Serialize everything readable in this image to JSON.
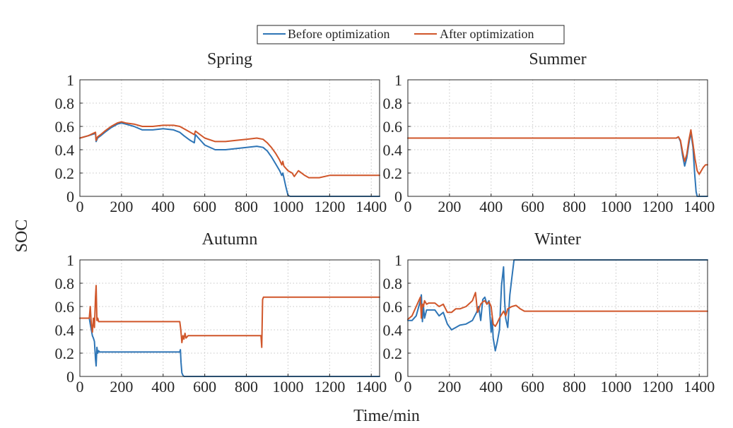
{
  "legend": {
    "entries": [
      {
        "label": "Before optimization",
        "color": "#2e75b6"
      },
      {
        "label": "After optimization",
        "color": "#d0562a"
      }
    ]
  },
  "figure": {
    "ylabel": "SOC",
    "xlabel": "Time/min"
  },
  "chart_data": [
    {
      "type": "line",
      "title": "Spring",
      "xlim": [
        0,
        1440
      ],
      "ylim": [
        0,
        1
      ],
      "xticks": [
        0,
        200,
        400,
        600,
        800,
        1000,
        1200,
        1400
      ],
      "yticks": [
        0,
        0.2,
        0.4,
        0.6,
        0.8,
        1
      ],
      "ytick_labels": [
        "0",
        "0.2",
        "0.4",
        "0.6",
        "0.8",
        "1"
      ],
      "grid": true,
      "series": [
        {
          "name": "Before optimization",
          "color": "#2e75b6",
          "x": [
            0,
            40,
            75,
            78,
            85,
            100,
            120,
            150,
            180,
            200,
            220,
            260,
            300,
            350,
            400,
            450,
            480,
            500,
            530,
            550,
            555,
            570,
            600,
            650,
            700,
            750,
            800,
            850,
            880,
            900,
            920,
            940,
            960,
            970,
            975,
            980,
            990,
            1000,
            1010,
            1100,
            1200,
            1300,
            1440
          ],
          "y": [
            0.5,
            0.52,
            0.54,
            0.47,
            0.5,
            0.52,
            0.55,
            0.59,
            0.62,
            0.63,
            0.62,
            0.6,
            0.57,
            0.57,
            0.58,
            0.57,
            0.55,
            0.52,
            0.48,
            0.46,
            0.53,
            0.5,
            0.44,
            0.4,
            0.4,
            0.41,
            0.42,
            0.43,
            0.42,
            0.39,
            0.34,
            0.28,
            0.22,
            0.18,
            0.2,
            0.16,
            0.08,
            0.01,
            0,
            0,
            0,
            0,
            0
          ]
        },
        {
          "name": "After optimization",
          "color": "#d0562a",
          "x": [
            0,
            40,
            75,
            78,
            85,
            100,
            120,
            150,
            180,
            200,
            220,
            260,
            300,
            350,
            400,
            450,
            480,
            500,
            530,
            550,
            555,
            570,
            600,
            650,
            700,
            750,
            800,
            850,
            880,
            900,
            920,
            940,
            960,
            970,
            975,
            980,
            1000,
            1020,
            1030,
            1050,
            1080,
            1100,
            1150,
            1200,
            1300,
            1440
          ],
          "y": [
            0.5,
            0.52,
            0.55,
            0.48,
            0.51,
            0.53,
            0.56,
            0.6,
            0.63,
            0.64,
            0.63,
            0.62,
            0.6,
            0.6,
            0.61,
            0.61,
            0.6,
            0.58,
            0.55,
            0.53,
            0.56,
            0.54,
            0.5,
            0.47,
            0.47,
            0.48,
            0.49,
            0.5,
            0.49,
            0.46,
            0.42,
            0.37,
            0.31,
            0.27,
            0.3,
            0.26,
            0.22,
            0.2,
            0.17,
            0.22,
            0.18,
            0.16,
            0.16,
            0.18,
            0.18,
            0.18
          ]
        }
      ]
    },
    {
      "type": "line",
      "title": "Summer",
      "xlim": [
        0,
        1440
      ],
      "ylim": [
        0,
        1
      ],
      "xticks": [
        0,
        200,
        400,
        600,
        800,
        1000,
        1200,
        1400
      ],
      "yticks": [
        0,
        0.2,
        0.4,
        0.6,
        0.8,
        1
      ],
      "ytick_labels": [
        "0",
        "0.2",
        "0.4",
        "0.6",
        "0.8",
        "1"
      ],
      "grid": true,
      "series": [
        {
          "name": "Before optimization",
          "color": "#2e75b6",
          "x": [
            0,
            1000,
            1290,
            1300,
            1310,
            1320,
            1330,
            1340,
            1350,
            1360,
            1370,
            1378,
            1385,
            1390,
            1400,
            1440
          ],
          "y": [
            0.5,
            0.5,
            0.5,
            0.51,
            0.47,
            0.35,
            0.26,
            0.33,
            0.45,
            0.55,
            0.42,
            0.2,
            0.04,
            0,
            0,
            0
          ]
        },
        {
          "name": "After optimization",
          "color": "#d0562a",
          "x": [
            0,
            1000,
            1290,
            1300,
            1310,
            1320,
            1330,
            1340,
            1350,
            1360,
            1370,
            1380,
            1390,
            1400,
            1410,
            1420,
            1430,
            1440
          ],
          "y": [
            0.5,
            0.5,
            0.5,
            0.51,
            0.48,
            0.38,
            0.3,
            0.36,
            0.48,
            0.57,
            0.45,
            0.32,
            0.22,
            0.19,
            0.22,
            0.25,
            0.27,
            0.27
          ]
        }
      ]
    },
    {
      "type": "line",
      "title": "Autumn",
      "xlim": [
        0,
        1440
      ],
      "ylim": [
        0,
        1
      ],
      "xticks": [
        0,
        200,
        400,
        600,
        800,
        1000,
        1200,
        1400
      ],
      "yticks": [
        0,
        0.2,
        0.4,
        0.6,
        0.8,
        1
      ],
      "ytick_labels": [
        "0",
        "0.2",
        "0.4",
        "0.6",
        "0.8",
        "1"
      ],
      "grid": true,
      "series": [
        {
          "name": "Before optimization",
          "color": "#2e75b6",
          "x": [
            0,
            45,
            50,
            55,
            60,
            65,
            70,
            75,
            78,
            82,
            86,
            90,
            95,
            100,
            200,
            300,
            400,
            480,
            483,
            486,
            490,
            495,
            500,
            600,
            800,
            1000,
            1200,
            1440
          ],
          "y": [
            0.5,
            0.5,
            0.45,
            0.4,
            0.35,
            0.33,
            0.3,
            0.15,
            0.09,
            0.25,
            0.2,
            0.22,
            0.21,
            0.21,
            0.21,
            0.21,
            0.21,
            0.21,
            0.23,
            0.12,
            0.03,
            0.01,
            0,
            0,
            0,
            0,
            0,
            0
          ]
        },
        {
          "name": "After optimization",
          "color": "#d0562a",
          "x": [
            0,
            45,
            50,
            55,
            60,
            65,
            70,
            75,
            78,
            82,
            86,
            90,
            95,
            100,
            200,
            300,
            400,
            480,
            485,
            490,
            495,
            500,
            505,
            510,
            520,
            600,
            700,
            800,
            860,
            870,
            874,
            878,
            882,
            890,
            900,
            1000,
            1200,
            1440
          ],
          "y": [
            0.5,
            0.5,
            0.6,
            0.45,
            0.38,
            0.5,
            0.42,
            0.68,
            0.78,
            0.48,
            0.5,
            0.47,
            0.47,
            0.47,
            0.47,
            0.47,
            0.47,
            0.47,
            0.4,
            0.29,
            0.35,
            0.32,
            0.37,
            0.33,
            0.35,
            0.35,
            0.35,
            0.35,
            0.35,
            0.35,
            0.25,
            0.66,
            0.68,
            0.68,
            0.68,
            0.68,
            0.68,
            0.68
          ]
        }
      ]
    },
    {
      "type": "line",
      "title": "Winter",
      "xlim": [
        0,
        1440
      ],
      "ylim": [
        0,
        1
      ],
      "xticks": [
        0,
        200,
        400,
        600,
        800,
        1000,
        1200,
        1400
      ],
      "yticks": [
        0,
        0.2,
        0.4,
        0.6,
        0.8,
        1
      ],
      "ytick_labels": [
        "0",
        "0.2",
        "0.4",
        "0.6",
        "0.8",
        "1"
      ],
      "grid": true,
      "series": [
        {
          "name": "Before optimization",
          "color": "#2e75b6",
          "x": [
            0,
            20,
            40,
            60,
            65,
            70,
            75,
            80,
            90,
            100,
            130,
            150,
            170,
            190,
            210,
            230,
            250,
            280,
            310,
            330,
            340,
            350,
            360,
            370,
            380,
            390,
            400,
            405,
            410,
            420,
            430,
            440,
            450,
            460,
            465,
            470,
            480,
            490,
            500,
            510,
            600,
            800,
            1000,
            1200,
            1440
          ],
          "y": [
            0.48,
            0.48,
            0.52,
            0.65,
            0.7,
            0.47,
            0.6,
            0.5,
            0.57,
            0.57,
            0.57,
            0.52,
            0.55,
            0.45,
            0.4,
            0.42,
            0.44,
            0.45,
            0.48,
            0.55,
            0.6,
            0.48,
            0.66,
            0.68,
            0.62,
            0.65,
            0.38,
            0.5,
            0.33,
            0.22,
            0.3,
            0.4,
            0.78,
            0.94,
            0.65,
            0.5,
            0.42,
            0.7,
            0.85,
            1.0,
            1.0,
            1.0,
            1.0,
            1.0,
            1.0
          ]
        },
        {
          "name": "After optimization",
          "color": "#d0562a",
          "x": [
            0,
            20,
            40,
            60,
            65,
            70,
            75,
            80,
            90,
            100,
            130,
            150,
            170,
            190,
            210,
            230,
            250,
            280,
            310,
            325,
            335,
            350,
            360,
            370,
            380,
            390,
            400,
            410,
            420,
            430,
            440,
            450,
            460,
            470,
            480,
            500,
            520,
            540,
            560,
            600,
            800,
            1000,
            1200,
            1440
          ],
          "y": [
            0.49,
            0.52,
            0.6,
            0.68,
            0.5,
            0.62,
            0.6,
            0.65,
            0.62,
            0.63,
            0.63,
            0.6,
            0.62,
            0.55,
            0.55,
            0.58,
            0.58,
            0.6,
            0.65,
            0.72,
            0.55,
            0.62,
            0.64,
            0.65,
            0.62,
            0.64,
            0.6,
            0.45,
            0.43,
            0.46,
            0.5,
            0.53,
            0.56,
            0.52,
            0.58,
            0.6,
            0.61,
            0.58,
            0.56,
            0.56,
            0.56,
            0.56,
            0.56,
            0.56
          ]
        }
      ]
    }
  ]
}
